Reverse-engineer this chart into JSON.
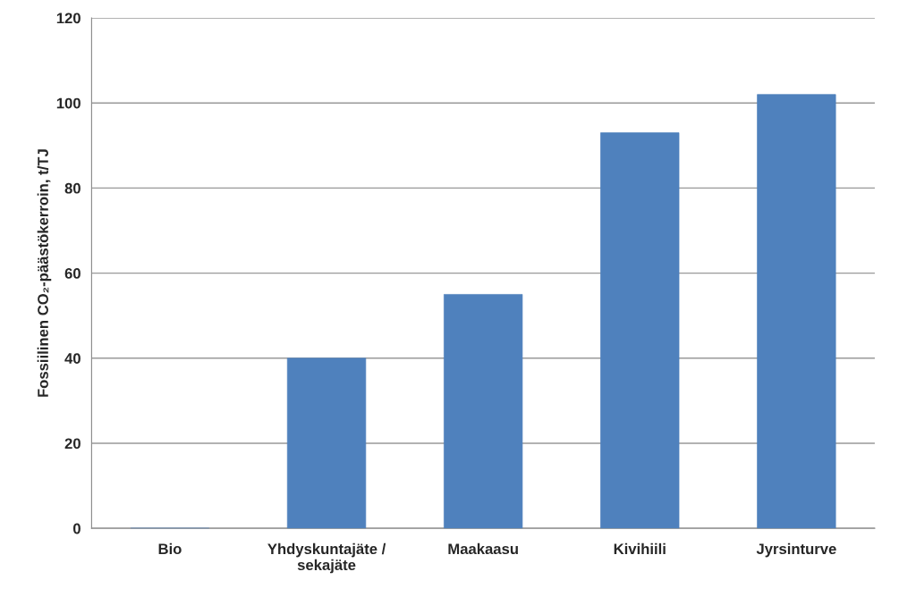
{
  "chart_data": {
    "type": "bar",
    "ylabel": "Fossiilinen CO₂-päästökerroin, t/TJ",
    "categories": [
      "Bio",
      "Yhdyskuntajäte /\nsekajäte",
      "Maakaasu",
      "Kivihiili",
      "Jyrsinturve"
    ],
    "values": [
      0,
      40,
      55,
      93,
      102
    ],
    "color": "#4f81bd",
    "ylim": [
      0,
      120
    ],
    "yticks": [
      0,
      20,
      40,
      60,
      80,
      100,
      120
    ],
    "grid": "y",
    "legend": false
  }
}
